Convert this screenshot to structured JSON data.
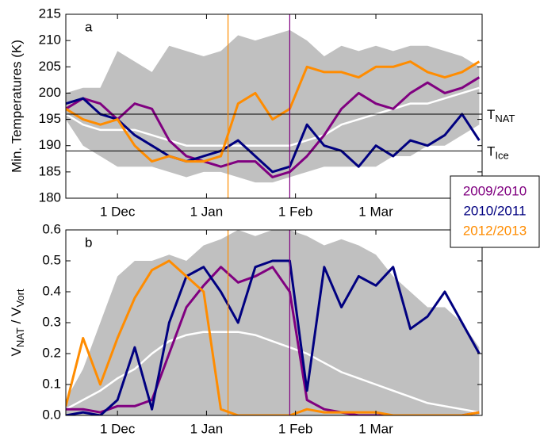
{
  "chart_data": [
    {
      "type": "line",
      "panel": "a",
      "ylabel": "Min. Temperatures (K)",
      "x": [
        -18,
        -12,
        -6,
        0,
        6,
        12,
        18,
        24,
        30,
        36,
        42,
        48,
        54,
        60,
        66,
        72,
        78,
        84,
        90,
        96,
        102,
        108,
        114,
        120,
        126
      ],
      "xlim": [
        -18,
        127
      ],
      "xticks": [
        {
          "value": 0,
          "label": "1 Dec"
        },
        {
          "value": 31,
          "label": "1 Jan"
        },
        {
          "value": 62,
          "label": "1 Feb"
        },
        {
          "value": 90,
          "label": "1 Mar"
        }
      ],
      "ylim": [
        180,
        215
      ],
      "yticks": [
        180,
        185,
        190,
        195,
        200,
        205,
        210,
        215
      ],
      "band": {
        "color": "#c0c0c0",
        "upper": [
          200,
          201,
          201,
          208,
          206,
          204,
          209,
          208,
          207,
          208,
          211,
          210,
          211,
          212,
          210,
          207,
          209,
          208,
          209,
          208,
          209,
          209,
          208,
          207,
          205
        ],
        "lower": [
          195,
          190,
          188,
          186,
          186,
          186,
          185,
          184,
          185,
          185,
          184,
          183,
          183,
          184,
          185,
          186,
          186,
          186,
          186,
          188,
          188,
          190,
          190,
          192,
          194
        ]
      },
      "mean": {
        "color": "#ffffff",
        "values": [
          196,
          194,
          193,
          193,
          193,
          192,
          191,
          190,
          190,
          190,
          190,
          190,
          190,
          190,
          191,
          192,
          194,
          195,
          196,
          197,
          198,
          198,
          199,
          200,
          201
        ]
      },
      "hlines": [
        {
          "value": 196,
          "label": "T",
          "sub": "NAT"
        },
        {
          "value": 189,
          "label": "T",
          "sub": "Ice"
        }
      ],
      "vlines": [
        {
          "value": 38.5,
          "color": "#ff8c00"
        },
        {
          "value": 60,
          "color": "#800080"
        }
      ],
      "series": [
        {
          "name": "2009/2010",
          "color": "#800080",
          "values": [
            197,
            199,
            198,
            195,
            198,
            197,
            191,
            188,
            187,
            186,
            187,
            187,
            184,
            185,
            188,
            192,
            197,
            200,
            198,
            197,
            200,
            202,
            200,
            201,
            203
          ]
        },
        {
          "name": "2010/2011",
          "color": "#000080",
          "values": [
            198,
            199,
            196,
            195,
            192,
            190,
            188,
            187,
            188,
            189,
            191,
            188,
            185,
            186,
            194,
            190,
            189,
            186,
            190,
            188,
            191,
            190,
            192,
            196,
            191
          ]
        },
        {
          "name": "2012/2013",
          "color": "#ff8c00",
          "values": [
            197,
            195,
            194,
            195,
            190,
            187,
            188,
            187,
            187,
            188,
            198,
            200,
            195,
            197,
            205,
            204,
            204,
            203,
            205,
            205,
            206,
            204,
            203,
            204,
            206
          ]
        }
      ]
    },
    {
      "type": "line",
      "panel": "b",
      "ylabel": [
        "V",
        "NAT",
        " / V",
        "Vort"
      ],
      "x": [
        -18,
        -12,
        -6,
        0,
        6,
        12,
        18,
        24,
        30,
        36,
        42,
        48,
        54,
        60,
        66,
        72,
        78,
        84,
        90,
        96,
        102,
        108,
        114,
        120,
        126
      ],
      "xlim": [
        -18,
        127
      ],
      "xticks": [
        {
          "value": 0,
          "label": "1 Dec"
        },
        {
          "value": 31,
          "label": "1 Jan"
        },
        {
          "value": 62,
          "label": "1 Feb"
        },
        {
          "value": 90,
          "label": "1 Mar"
        }
      ],
      "ylim": [
        0,
        0.6
      ],
      "yticks": [
        {
          "value": 0,
          "label": "0.0"
        },
        0.1,
        0.2,
        0.3,
        0.4,
        0.5,
        0.6
      ],
      "band": {
        "color": "#c0c0c0",
        "upper": [
          0.05,
          0.15,
          0.3,
          0.45,
          0.5,
          0.5,
          0.52,
          0.5,
          0.55,
          0.57,
          0.6,
          0.58,
          0.6,
          0.6,
          0.58,
          0.55,
          0.57,
          0.55,
          0.52,
          0.45,
          0.4,
          0.35,
          0.35,
          0.3,
          0.22
        ],
        "lower": [
          0,
          0,
          0,
          0,
          0,
          0,
          0,
          0,
          0,
          0,
          0,
          0,
          0,
          0,
          0,
          0,
          0,
          0,
          0,
          0,
          0,
          0,
          0,
          0,
          0
        ]
      },
      "mean": {
        "color": "#ffffff",
        "values": [
          0.02,
          0.05,
          0.08,
          0.12,
          0.15,
          0.2,
          0.24,
          0.26,
          0.27,
          0.27,
          0.27,
          0.26,
          0.24,
          0.22,
          0.2,
          0.17,
          0.14,
          0.12,
          0.1,
          0.08,
          0.06,
          0.04,
          0.03,
          0.02,
          0.01
        ]
      },
      "vlines": [
        {
          "value": 38.5,
          "color": "#ff8c00"
        },
        {
          "value": 60,
          "color": "#800080"
        }
      ],
      "series": [
        {
          "color": "#800080",
          "values": [
            0.02,
            0.02,
            0.01,
            0.03,
            0.03,
            0.05,
            0.2,
            0.35,
            0.42,
            0.48,
            0.43,
            0.45,
            0.48,
            0.4,
            0.05,
            0.02,
            0.01,
            0,
            0,
            0,
            0,
            0,
            0,
            0,
            0.01
          ]
        },
        {
          "color": "#000080",
          "values": [
            0,
            0.01,
            0,
            0.05,
            0.22,
            0.02,
            0.3,
            0.45,
            0.48,
            0.4,
            0.3,
            0.48,
            0.5,
            0.5,
            0.08,
            0.48,
            0.35,
            0.45,
            0.42,
            0.48,
            0.28,
            0.32,
            0.4,
            0.3,
            0.2
          ]
        },
        {
          "color": "#ff8c00",
          "values": [
            0.03,
            0.25,
            0.1,
            0.25,
            0.38,
            0.47,
            0.5,
            0.45,
            0.4,
            0.02,
            0,
            0,
            0,
            0,
            0.02,
            0.01,
            0.01,
            0.01,
            0.01,
            0,
            0,
            0,
            0,
            0,
            0.01
          ]
        }
      ]
    }
  ]
}
